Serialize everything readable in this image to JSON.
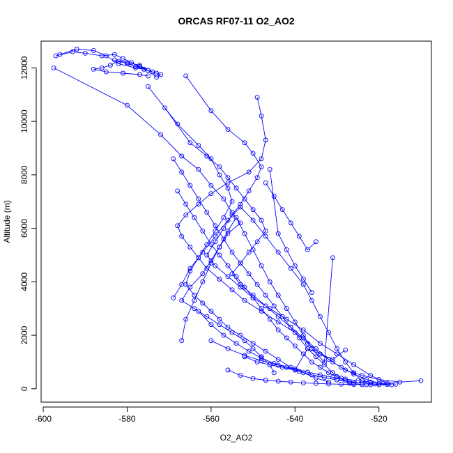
{
  "chart_data": {
    "type": "scatter",
    "title": "ORCAS RF07-11 O2_AO2",
    "xlabel": "O2_AO2",
    "ylabel": "Altitude (m)",
    "xlim": [
      -600.5,
      -507.5
    ],
    "ylim": [
      -500,
      13000
    ],
    "xticks": [
      -600,
      -580,
      -560,
      -540,
      -520
    ],
    "yticks": [
      0,
      2000,
      4000,
      6000,
      8000,
      10000,
      12000
    ],
    "grid": false,
    "legend": "none",
    "series_color": "#0000ff",
    "series": [
      {
        "x": [
          -597,
          -593,
          -590,
          -586,
          -583,
          -581,
          -579,
          -577,
          -575,
          -573,
          -574,
          -576,
          -578,
          -580,
          -582,
          -584,
          -586,
          -588,
          -585,
          -581,
          -577,
          -575
        ],
        "y": [
          12450,
          12600,
          12550,
          12450,
          12500,
          12350,
          12200,
          12050,
          11900,
          11800,
          11850,
          11950,
          12050,
          12150,
          12250,
          12100,
          12000,
          11950,
          11850,
          11800,
          11750,
          11700
        ]
      },
      {
        "x": [
          -596,
          -592,
          -588,
          -585,
          -582,
          -578,
          -576,
          -574,
          -572,
          -573,
          -575,
          -577,
          -580,
          -583
        ],
        "y": [
          12500,
          12700,
          12650,
          12450,
          12150,
          12000,
          11950,
          11850,
          11750,
          11650,
          11900,
          12100,
          12200,
          12300
        ]
      },
      {
        "x": [
          -597.5,
          -580,
          -572,
          -567,
          -563,
          -560,
          -557,
          -555,
          -553,
          -556,
          -558,
          -560,
          -562,
          -565,
          -567,
          -564,
          -561,
          -558,
          -555,
          -552,
          -550,
          -548,
          -546,
          -545
        ],
        "y": [
          12000,
          10600,
          9500,
          8700,
          8200,
          7600,
          7100,
          6600,
          6200,
          5800,
          5300,
          4800,
          4300,
          3800,
          3300,
          3000,
          2700,
          2400,
          2100,
          1800,
          1500,
          1200,
          900,
          600
        ]
      },
      {
        "x": [
          -575,
          -568,
          -563,
          -560,
          -558,
          -556,
          -555,
          -557,
          -559,
          -561,
          -563,
          -565,
          -566,
          -564,
          -562,
          -560,
          -558,
          -556,
          -553,
          -550,
          -547,
          -544,
          -541,
          -538,
          -535,
          -532
        ],
        "y": [
          11300,
          9900,
          9100,
          8600,
          8000,
          7500,
          7000,
          6400,
          5900,
          5400,
          4900,
          4400,
          3900,
          3500,
          3200,
          2900,
          2600,
          2300,
          2000,
          1700,
          1400,
          1100,
          800,
          600,
          400,
          250
        ]
      },
      {
        "x": [
          -566,
          -560,
          -556,
          -552,
          -550,
          -548,
          -549,
          -551,
          -553,
          -555,
          -557,
          -559,
          -561,
          -559,
          -556,
          -553,
          -550,
          -546,
          -542,
          -538,
          -534,
          -530,
          -526,
          -522,
          -518
        ],
        "y": [
          11700,
          10400,
          9700,
          9200,
          8800,
          8300,
          7900,
          7400,
          6900,
          6500,
          6000,
          5500,
          5000,
          4600,
          4200,
          3800,
          3400,
          3000,
          2600,
          2200,
          1700,
          1300,
          900,
          500,
          200
        ]
      },
      {
        "x": [
          -571,
          -565,
          -561,
          -558,
          -556,
          -554,
          -552,
          -550,
          -548,
          -547,
          -549,
          -551,
          -553,
          -555,
          -553,
          -550,
          -547,
          -544,
          -541,
          -538,
          -535,
          -532,
          -529,
          -526,
          -523,
          -520,
          -517
        ],
        "y": [
          10500,
          9200,
          8700,
          8300,
          7900,
          7500,
          7100,
          6700,
          6300,
          5900,
          5500,
          5100,
          4700,
          4300,
          3900,
          3500,
          3100,
          2700,
          2300,
          1900,
          1500,
          1100,
          800,
          550,
          350,
          200,
          150
        ]
      },
      {
        "x": [
          -549,
          -548,
          -547,
          -548,
          -551,
          -556,
          -560,
          -563,
          -566,
          -568,
          -567,
          -565,
          -563,
          -561,
          -558,
          -555,
          -552,
          -548,
          -544,
          -540,
          -537,
          -534,
          -531,
          -528,
          -524,
          -520,
          -515,
          -510
        ],
        "y": [
          10900,
          10200,
          9300,
          8600,
          8100,
          7700,
          7300,
          6900,
          6500,
          6100,
          5700,
          5300,
          4900,
          4500,
          4100,
          3700,
          3300,
          2900,
          2500,
          2100,
          1700,
          1300,
          1000,
          700,
          500,
          350,
          250,
          300
        ]
      },
      {
        "x": [
          -569,
          -567,
          -565,
          -563,
          -561,
          -559,
          -557,
          -555,
          -553,
          -551,
          -549,
          -547,
          -545,
          -543,
          -541,
          -539,
          -537,
          -535,
          -533,
          -531,
          -529,
          -527
        ],
        "y": [
          8600,
          8100,
          7600,
          7100,
          6600,
          6100,
          5600,
          5100,
          4700,
          4300,
          3900,
          3500,
          3100,
          2700,
          2300,
          1900,
          1500,
          1200,
          900,
          600,
          400,
          200
        ]
      },
      {
        "x": [
          -568,
          -566,
          -564,
          -562,
          -560,
          -558,
          -556,
          -554,
          -552,
          -550,
          -548,
          -546,
          -544,
          -542,
          -540,
          -538,
          -536,
          -534,
          -532,
          -530,
          -528,
          -526,
          -524
        ],
        "y": [
          7400,
          6900,
          6400,
          5900,
          5400,
          5000,
          4600,
          4200,
          3800,
          3400,
          3000,
          2600,
          2200,
          1900,
          1600,
          1300,
          1000,
          800,
          600,
          450,
          300,
          200,
          150
        ]
      },
      {
        "x": [
          -569,
          -567,
          -565,
          -562,
          -559,
          -556,
          -553,
          -550,
          -547,
          -544,
          -541,
          -538,
          -536,
          -534,
          -532,
          -530,
          -528,
          -526,
          -524,
          -522
        ],
        "y": [
          3400,
          3900,
          4500,
          5100,
          5700,
          6300,
          6800,
          6300,
          5700,
          5100,
          4500,
          3900,
          3300,
          2700,
          2100,
          1500,
          1000,
          600,
          300,
          150
        ]
      },
      {
        "x": [
          -567,
          -566,
          -564,
          -562,
          -560,
          -558,
          -556,
          -554,
          -552,
          -550,
          -548,
          -546,
          -544,
          -542,
          -540,
          -538,
          -536,
          -533,
          -531
        ],
        "y": [
          1800,
          2600,
          3300,
          4000,
          4700,
          5300,
          5900,
          6400,
          5800,
          5200,
          4600,
          4000,
          3500,
          3000,
          2500,
          2000,
          1500,
          1000,
          4900
        ]
      },
      {
        "x": [
          -563,
          -560,
          -557,
          -554,
          -551,
          -548,
          -545,
          -542,
          -539,
          -536,
          -533,
          -530,
          -527,
          -524,
          -521,
          -518
        ],
        "y": [
          2900,
          2400,
          2000,
          1700,
          1400,
          1150,
          950,
          800,
          650,
          520,
          420,
          330,
          260,
          210,
          180,
          160
        ]
      },
      {
        "x": [
          -560,
          -556,
          -552,
          -548,
          -544,
          -540,
          -537,
          -534,
          -531,
          -528,
          -525,
          -522,
          -519,
          -516
        ],
        "y": [
          1800,
          1500,
          1250,
          1050,
          880,
          740,
          620,
          520,
          430,
          360,
          300,
          250,
          210,
          170
        ]
      },
      {
        "x": [
          -556,
          -553,
          -550,
          -547,
          -544,
          -541,
          -538,
          -535,
          -532,
          -529,
          -526,
          -523,
          -520
        ],
        "y": [
          700,
          500,
          380,
          320,
          280,
          250,
          220,
          200,
          180,
          170,
          160,
          150,
          150
        ]
      },
      {
        "x": [
          -552,
          -549,
          -546,
          -543,
          -540,
          -537,
          -534,
          -531,
          -528
        ],
        "y": [
          1200,
          1000,
          900,
          800,
          700,
          1500,
          1300,
          1100,
          1450
        ]
      },
      {
        "x": [
          -547,
          -545,
          -543,
          -541,
          -539,
          -537,
          -535
        ],
        "y": [
          7700,
          7200,
          6700,
          6200,
          5700,
          5200,
          5500
        ]
      },
      {
        "x": [
          -546,
          -544,
          -542,
          -540,
          -538,
          -536
        ],
        "y": [
          8200,
          5800,
          5200,
          4600,
          4100,
          3600
        ]
      }
    ]
  }
}
